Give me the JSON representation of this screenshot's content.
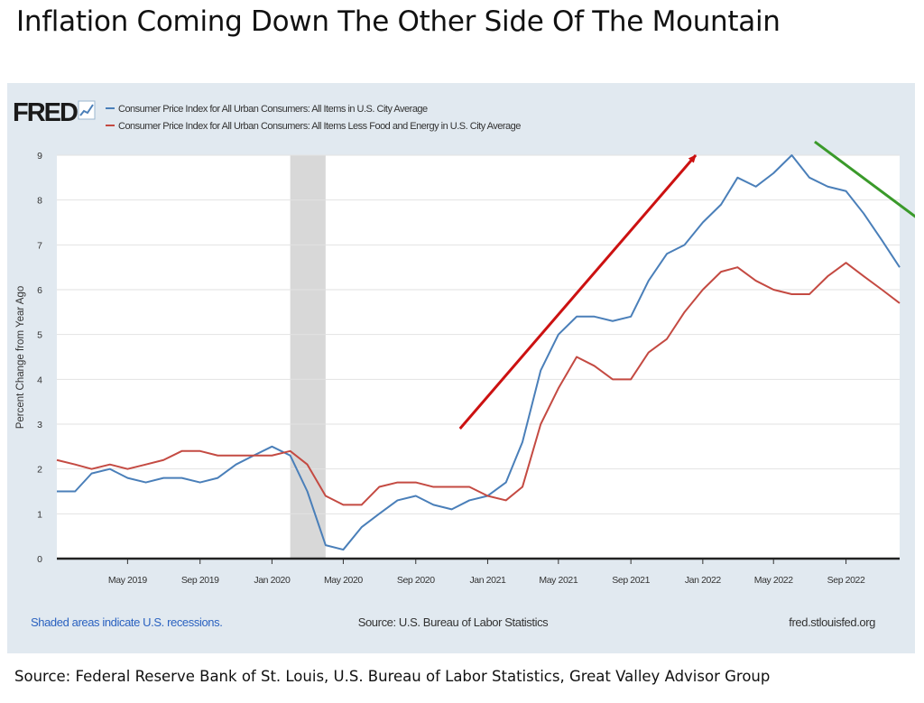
{
  "title": "Inflation Coming Down The Other Side Of The Mountain",
  "footer_source": "Source: Federal Reserve Bank of St. Louis, U.S. Bureau of Labor Statistics, Great Valley Advisor Group",
  "fred": {
    "logo": "FRED",
    "logo_icon": "line-chart-icon",
    "notes_left": "Shaded areas indicate U.S. recessions.",
    "notes_center": "Source: U.S. Bureau of Labor Statistics",
    "notes_right": "fred.stlouisfed.org"
  },
  "colors": {
    "cpi_all": "#4a7fb9",
    "cpi_core": "#c44a42",
    "up_arrow": "#cc1111",
    "down_arrow": "#3a9a2a",
    "recession": "#d8d8d8",
    "panel_bg": "#e1e9f0"
  },
  "annotations": [
    {
      "type": "arrow",
      "direction": "up",
      "from": [
        "2020-11-15",
        2.9
      ],
      "to": [
        "2021-12-20",
        9.0
      ]
    },
    {
      "type": "arrow",
      "direction": "down",
      "from": [
        "2022-07-10",
        9.3
      ],
      "to": [
        "2023-01-20",
        7.4
      ]
    }
  ],
  "chart_data": {
    "type": "line",
    "ylabel": "Percent Change from Year Ago",
    "ylim": [
      0,
      9
    ],
    "yticks": [
      0,
      1,
      2,
      3,
      4,
      5,
      6,
      7,
      8,
      9
    ],
    "xlim": [
      "2019-01-01",
      "2022-12-01"
    ],
    "xticks": [
      "2019-05-01",
      "2019-09-01",
      "2020-01-01",
      "2020-05-01",
      "2020-09-01",
      "2021-01-01",
      "2021-05-01",
      "2021-09-01",
      "2022-01-01",
      "2022-05-01",
      "2022-09-01"
    ],
    "xtick_labels": [
      "May 2019",
      "Sep 2019",
      "Jan 2020",
      "May 2020",
      "Sep 2020",
      "Jan 2021",
      "May 2021",
      "Sep 2021",
      "Jan 2022",
      "May 2022",
      "Sep 2022"
    ],
    "grid": true,
    "legend_position": "top-left",
    "recessions": [
      [
        "2020-02-01",
        "2020-04-01"
      ]
    ],
    "x": [
      "2019-01",
      "2019-02",
      "2019-03",
      "2019-04",
      "2019-05",
      "2019-06",
      "2019-07",
      "2019-08",
      "2019-09",
      "2019-10",
      "2019-11",
      "2019-12",
      "2020-01",
      "2020-02",
      "2020-03",
      "2020-04",
      "2020-05",
      "2020-06",
      "2020-07",
      "2020-08",
      "2020-09",
      "2020-10",
      "2020-11",
      "2020-12",
      "2021-01",
      "2021-02",
      "2021-03",
      "2021-04",
      "2021-05",
      "2021-06",
      "2021-07",
      "2021-08",
      "2021-09",
      "2021-10",
      "2021-11",
      "2021-12",
      "2022-01",
      "2022-02",
      "2022-03",
      "2022-04",
      "2022-05",
      "2022-06",
      "2022-07",
      "2022-08",
      "2022-09",
      "2022-10",
      "2022-11",
      "2022-12"
    ],
    "series": [
      {
        "name": "Consumer Price Index for All Urban Consumers: All Items in U.S. City Average",
        "values": [
          1.5,
          1.5,
          1.9,
          2.0,
          1.8,
          1.7,
          1.8,
          1.8,
          1.7,
          1.8,
          2.1,
          2.3,
          2.5,
          2.3,
          1.5,
          0.3,
          0.2,
          0.7,
          1.0,
          1.3,
          1.4,
          1.2,
          1.1,
          1.3,
          1.4,
          1.7,
          2.6,
          4.2,
          5.0,
          5.4,
          5.4,
          5.3,
          5.4,
          6.2,
          6.8,
          7.0,
          7.5,
          7.9,
          8.5,
          8.3,
          8.6,
          9.0,
          8.5,
          8.3,
          8.2,
          7.7,
          7.1,
          6.5
        ]
      },
      {
        "name": "Consumer Price Index for All Urban Consumers: All Items Less Food and Energy in U.S. City Average",
        "values": [
          2.2,
          2.1,
          2.0,
          2.1,
          2.0,
          2.1,
          2.2,
          2.4,
          2.4,
          2.3,
          2.3,
          2.3,
          2.3,
          2.4,
          2.1,
          1.4,
          1.2,
          1.2,
          1.6,
          1.7,
          1.7,
          1.6,
          1.6,
          1.6,
          1.4,
          1.3,
          1.6,
          3.0,
          3.8,
          4.5,
          4.3,
          4.0,
          4.0,
          4.6,
          4.9,
          5.5,
          6.0,
          6.4,
          6.5,
          6.2,
          6.0,
          5.9,
          5.9,
          6.3,
          6.6,
          6.3,
          6.0,
          5.7
        ]
      }
    ]
  }
}
